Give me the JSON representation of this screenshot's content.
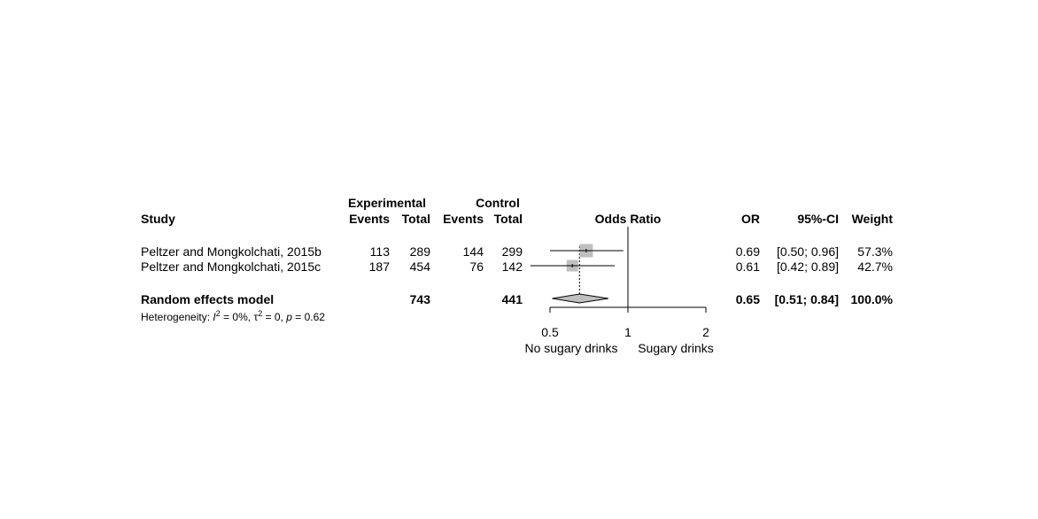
{
  "chart_data": {
    "type": "forest",
    "headers": {
      "study": "Study",
      "experimental": "Experimental",
      "control": "Control",
      "events": "Events",
      "total": "Total",
      "plot_title": "Odds Ratio",
      "or": "OR",
      "ci": "95%-CI",
      "weight": "Weight"
    },
    "studies": [
      {
        "name": "Peltzer and Mongkolchati, 2015b",
        "exp_events": "113",
        "exp_total": "289",
        "ctrl_events": "144",
        "ctrl_total": "299",
        "or": 0.69,
        "lower": 0.5,
        "upper": 0.96,
        "weight_pct": 57.3,
        "or_text": "0.69",
        "ci_text": "[0.50; 0.96]",
        "weight_text": "57.3%"
      },
      {
        "name": "Peltzer and Mongkolchati, 2015c",
        "exp_events": "187",
        "exp_total": "454",
        "ctrl_events": "76",
        "ctrl_total": "142",
        "or": 0.61,
        "lower": 0.42,
        "upper": 0.89,
        "weight_pct": 42.7,
        "or_text": "0.61",
        "ci_text": "[0.42; 0.89]",
        "weight_text": "42.7%"
      }
    ],
    "pooled": {
      "name": "Random effects model",
      "exp_total": "743",
      "ctrl_total": "441",
      "or": 0.65,
      "lower": 0.51,
      "upper": 0.84,
      "or_text": "0.65",
      "ci_text": "[0.51; 0.84]",
      "weight_text": "100.0%"
    },
    "heterogeneity": {
      "prefix": "Heterogeneity: ",
      "i2_symbol": "I",
      "i2_rest": " = 0%, ",
      "tau_symbol": "τ",
      "tau_rest": " = 0, ",
      "p_symbol": "p",
      "p_rest": " = 0.62"
    },
    "axis": {
      "scale": "log",
      "range": [
        0.5,
        2
      ],
      "ticks": [
        0.5,
        1,
        2
      ],
      "tick_labels": [
        "0.5",
        "1",
        "2"
      ],
      "null_value": 1
    },
    "favours": {
      "left": "No sugary drinks",
      "right": "Sugary drinks",
      "left_color": "#228b22",
      "right_color": "#a52a2a"
    },
    "colors": {
      "square": "#bfbfbf",
      "diamond": "#bfbfbf",
      "line": "#000000"
    }
  }
}
